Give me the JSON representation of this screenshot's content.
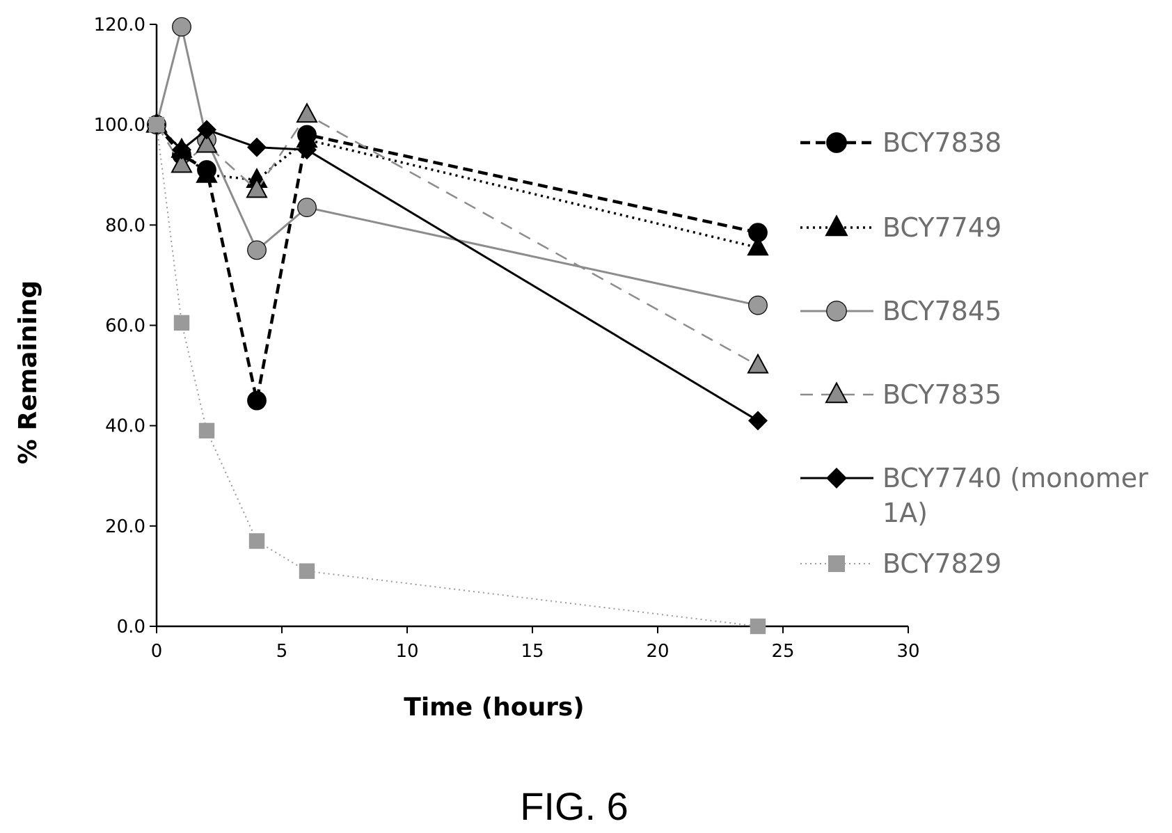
{
  "chart_data": {
    "type": "line",
    "xlabel": "Time (hours)",
    "ylabel": "% Remaining",
    "xlim": [
      0,
      30
    ],
    "ylim": [
      0,
      120
    ],
    "x_ticks": [
      "0",
      "5",
      "10",
      "15",
      "20",
      "25",
      "30"
    ],
    "y_ticks": [
      "0.0",
      "20.0",
      "40.0",
      "60.0",
      "80.0",
      "100.0",
      "120.0"
    ],
    "grid": false,
    "legend_position": "right",
    "series": [
      {
        "name": "BCY7838",
        "color": "#000000",
        "line_style": "dashed-bold",
        "marker": "circle",
        "marker_fill": "#000000",
        "x": [
          0,
          1,
          2,
          4,
          6,
          24
        ],
        "y": [
          100.0,
          94.0,
          91.0,
          45.0,
          98.0,
          78.5
        ]
      },
      {
        "name": "BCY7749",
        "color": "#000000",
        "line_style": "dotted",
        "marker": "triangle",
        "marker_fill": "#000000",
        "x": [
          0,
          1,
          2,
          4,
          6,
          24
        ],
        "y": [
          100.0,
          95.0,
          90.0,
          89.0,
          97.0,
          75.5
        ]
      },
      {
        "name": "BCY7845",
        "color": "#8c8c8c",
        "line_style": "solid",
        "marker": "circle",
        "marker_fill": "#9a9a9a",
        "x": [
          0,
          1,
          2,
          4,
          6,
          24
        ],
        "y": [
          100.0,
          119.5,
          97.0,
          75.0,
          83.5,
          64.0
        ]
      },
      {
        "name": "BCY7835",
        "color": "#8c8c8c",
        "line_style": "dashed",
        "marker": "triangle",
        "marker_fill": "#8c8c8c",
        "x": [
          0,
          1,
          2,
          4,
          6,
          24
        ],
        "y": [
          100.0,
          92.0,
          96.0,
          87.0,
          102.0,
          52.0
        ]
      },
      {
        "name": "BCY7740 (monomer 1A)",
        "color": "#000000",
        "line_style": "solid",
        "marker": "diamond",
        "marker_fill": "#000000",
        "x": [
          0,
          1,
          2,
          4,
          6,
          24
        ],
        "y": [
          100.0,
          95.0,
          99.0,
          95.5,
          95.0,
          41.0
        ]
      },
      {
        "name": "BCY7829",
        "color": "#9a9a9a",
        "line_style": "dotted-fine",
        "marker": "square",
        "marker_fill": "#9a9a9a",
        "x": [
          0,
          1,
          2,
          4,
          6,
          24
        ],
        "y": [
          100.0,
          60.5,
          39.0,
          17.0,
          11.0,
          0.0
        ]
      }
    ]
  },
  "figure": {
    "caption": "FIG. 6"
  }
}
